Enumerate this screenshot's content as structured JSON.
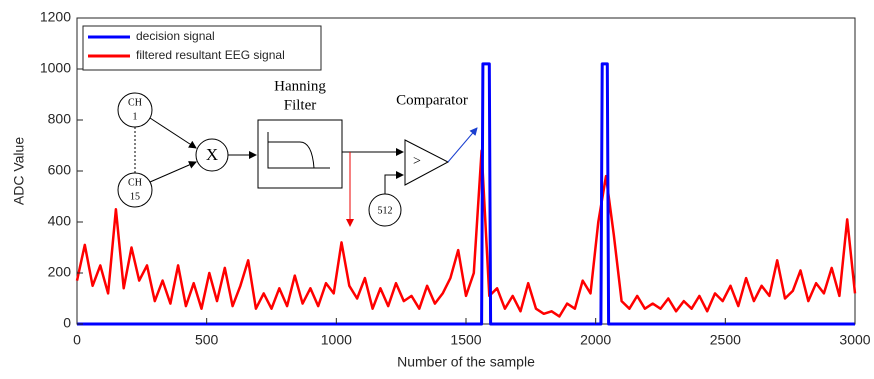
{
  "chart_data": {
    "type": "line",
    "xlabel": "Number of the sample",
    "ylabel": "ADC Value",
    "xlim": [
      0,
      3000
    ],
    "ylim": [
      0,
      1200
    ],
    "xticks": [
      0,
      500,
      1000,
      1500,
      2000,
      2500,
      3000
    ],
    "yticks": [
      0,
      200,
      400,
      600,
      800,
      1000,
      1200
    ],
    "grid": false,
    "legend": "upper left",
    "series": [
      {
        "name": "decision signal",
        "color": "#0000ff",
        "x": [
          0,
          1560,
          1565,
          1590,
          1595,
          2020,
          2025,
          2045,
          2050,
          3000
        ],
        "values": [
          0,
          0,
          1020,
          1020,
          0,
          0,
          1020,
          1020,
          0,
          0
        ]
      },
      {
        "name": "filtered resultant EEG signal",
        "color": "#ff0000",
        "x": [
          0,
          30,
          60,
          90,
          120,
          150,
          180,
          210,
          240,
          270,
          300,
          330,
          360,
          390,
          420,
          450,
          480,
          510,
          540,
          570,
          600,
          630,
          660,
          690,
          720,
          750,
          780,
          810,
          840,
          870,
          900,
          930,
          960,
          990,
          1020,
          1050,
          1080,
          1110,
          1140,
          1170,
          1200,
          1230,
          1260,
          1290,
          1320,
          1350,
          1380,
          1410,
          1440,
          1470,
          1500,
          1530,
          1560,
          1590,
          1620,
          1650,
          1680,
          1710,
          1740,
          1770,
          1800,
          1830,
          1860,
          1890,
          1920,
          1950,
          1980,
          2010,
          2040,
          2070,
          2100,
          2130,
          2160,
          2190,
          2220,
          2250,
          2280,
          2310,
          2340,
          2370,
          2400,
          2430,
          2460,
          2490,
          2520,
          2550,
          2580,
          2610,
          2640,
          2670,
          2700,
          2730,
          2760,
          2790,
          2820,
          2850,
          2880,
          2910,
          2940,
          2970,
          3000
        ],
        "values": [
          170,
          310,
          150,
          230,
          120,
          450,
          140,
          300,
          170,
          230,
          90,
          170,
          80,
          230,
          70,
          160,
          60,
          200,
          90,
          220,
          70,
          150,
          250,
          60,
          120,
          60,
          140,
          70,
          190,
          80,
          140,
          70,
          160,
          120,
          320,
          150,
          100,
          180,
          60,
          140,
          70,
          160,
          90,
          110,
          60,
          150,
          80,
          120,
          180,
          290,
          110,
          200,
          680,
          110,
          140,
          60,
          110,
          50,
          160,
          60,
          40,
          50,
          30,
          80,
          60,
          170,
          120,
          400,
          580,
          350,
          90,
          60,
          110,
          60,
          80,
          60,
          100,
          50,
          90,
          60,
          110,
          50,
          120,
          90,
          150,
          70,
          180,
          90,
          150,
          110,
          250,
          100,
          130,
          210,
          90,
          160,
          120,
          220,
          110,
          410,
          120
        ]
      }
    ]
  },
  "inset": {
    "ch_first": [
      "CH",
      "1"
    ],
    "ch_last": [
      "CH",
      "15"
    ],
    "multiplier": "X",
    "filter": [
      "Hanning",
      "Filter"
    ],
    "comparator": "Comparator",
    "compare_sign": ">",
    "threshold": "512"
  }
}
